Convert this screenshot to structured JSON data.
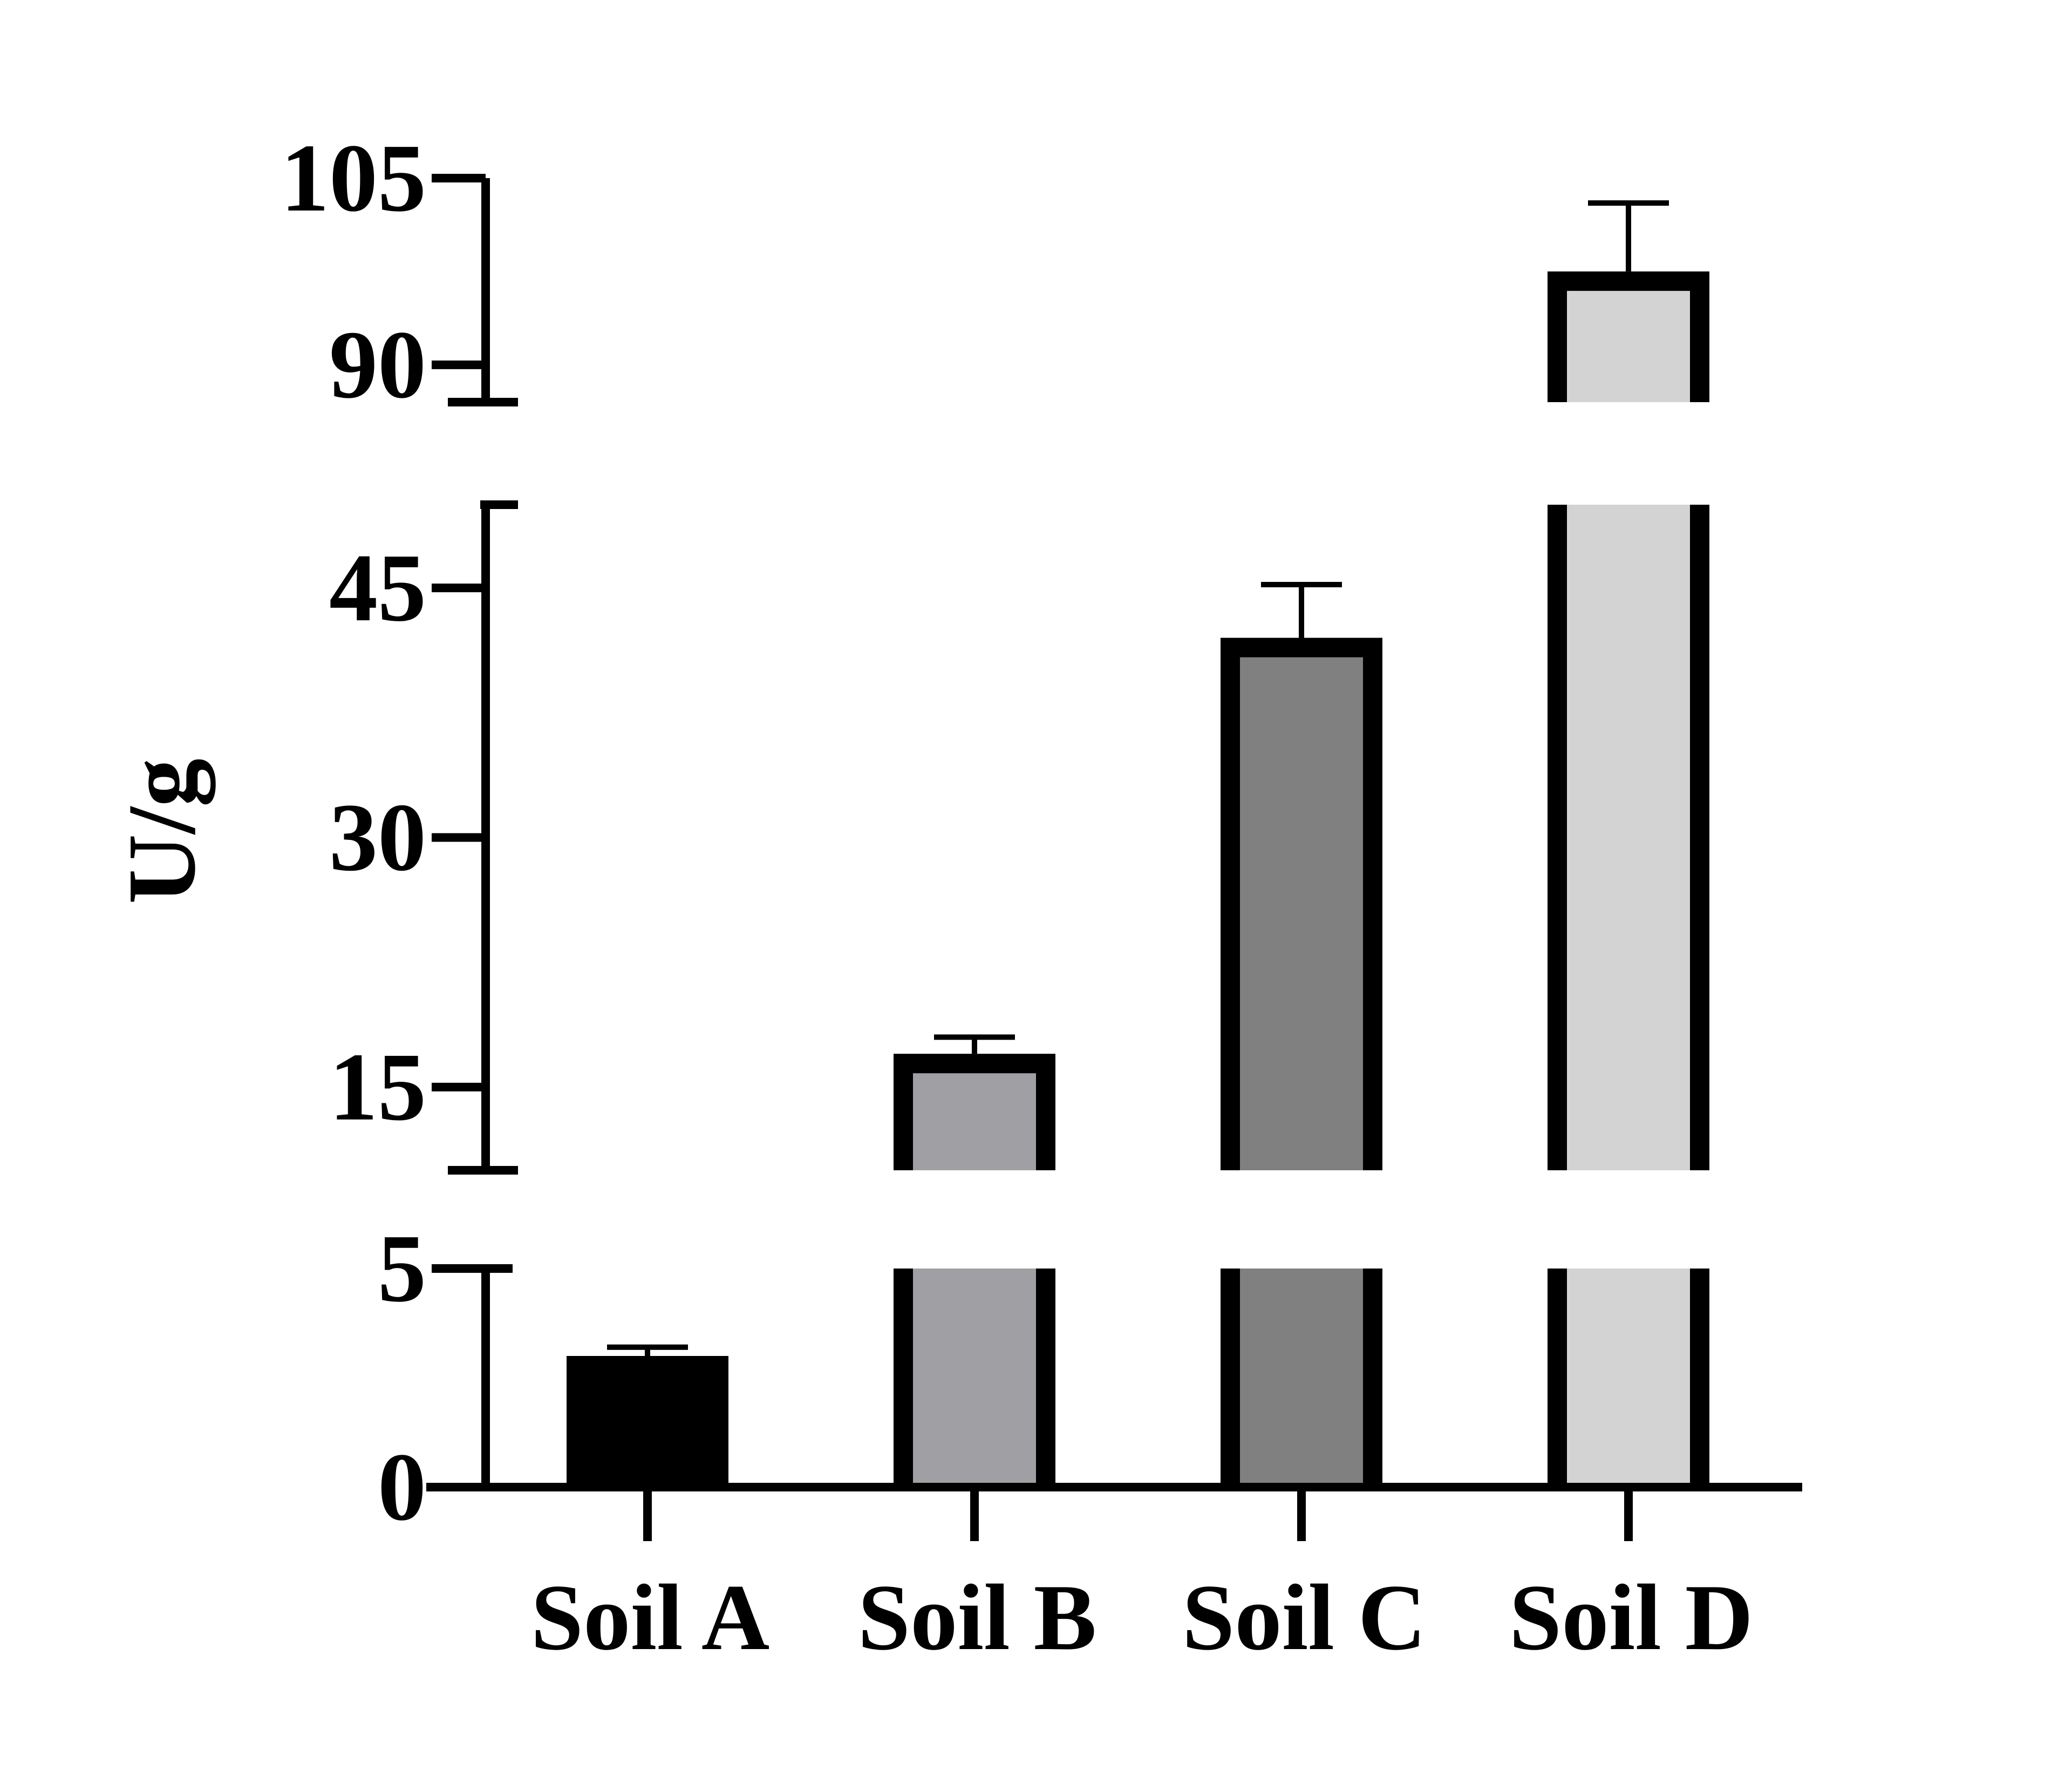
{
  "chart_data": {
    "type": "bar",
    "title": "",
    "xlabel": "",
    "ylabel": "U/g",
    "categories": [
      "Soil A",
      "Soil B",
      "Soil C",
      "Soil D"
    ],
    "series": [
      {
        "values": [
          3.0,
          17.0,
          42.0,
          97.5
        ],
        "errors": [
          0.2,
          1.0,
          3.2,
          5.5
        ]
      }
    ],
    "bar_colors": [
      "#000000",
      "#a0a0a4",
      "#808080",
      "#d3d3d3"
    ],
    "bar_outline": "#000000",
    "broken_axis": true,
    "segments": [
      {
        "range": [
          0,
          5
        ],
        "ticks": [
          0,
          5
        ]
      },
      {
        "range": [
          10,
          50
        ],
        "ticks": [
          15,
          30,
          45
        ]
      },
      {
        "range": [
          87,
          105
        ],
        "ticks": [
          90,
          105
        ]
      }
    ],
    "tick_labels": [
      "0",
      "5",
      "15",
      "30",
      "45",
      "90",
      "105"
    ],
    "grid": false,
    "legend": "none"
  }
}
